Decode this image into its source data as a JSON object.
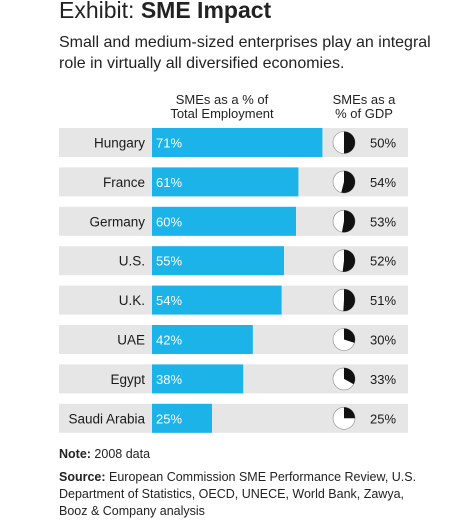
{
  "header": {
    "prefix": "Exhibit: ",
    "title": "SME Impact",
    "subtitle": "Small and medium-sized enterprises play an integral role in virtually all diversified economies."
  },
  "columns": {
    "employment_header_line1": "SMEs as a % of",
    "employment_header_line2": "Total Employment",
    "gdp_header_line1": "SMEs as a",
    "gdp_header_line2": "% of GDP"
  },
  "colors": {
    "bar": "#1BB3E8",
    "track": "#E6E6E6",
    "pie_fill": "#111111",
    "pie_bg": "#FFFFFF"
  },
  "chart_data": {
    "type": "bar",
    "categories": [
      "Hungary",
      "France",
      "Germany",
      "U.S.",
      "U.K.",
      "UAE",
      "Egypt",
      "Saudi Arabia"
    ],
    "series": [
      {
        "name": "SMEs as a % of Total Employment",
        "values": [
          71,
          61,
          60,
          55,
          54,
          42,
          38,
          25
        ],
        "labels": [
          "71%",
          "61%",
          "60%",
          "55%",
          "54%",
          "42%",
          "38%",
          "25%"
        ]
      },
      {
        "name": "SMEs as a % of GDP",
        "values": [
          50,
          54,
          53,
          52,
          51,
          30,
          33,
          25
        ],
        "labels": [
          "50%",
          "54%",
          "53%",
          "52%",
          "51%",
          "30%",
          "33%",
          "25%"
        ]
      }
    ],
    "xlim": [
      0,
      100
    ]
  },
  "footer": {
    "note_label": "Note:",
    "note_text": " 2008 data",
    "source_label": "Source:",
    "source_text": " European Commission SME Performance Review, U.S. Department of Statistics, OECD, UNECE, World Bank, Zawya, Booz & Company analysis"
  }
}
